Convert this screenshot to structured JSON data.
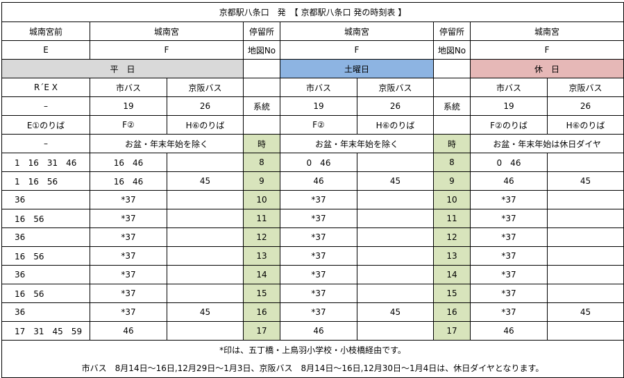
{
  "title": "京都駅八条口　発　【 京都駅八条口 発の時刻表 】",
  "header": {
    "stops": {
      "weekday_e": "城南宮前",
      "weekday_f": "城南宮",
      "col_stop": "停留所",
      "saturday_f": "城南宮",
      "col_stop2": "停留所",
      "holiday_f": "城南宮"
    },
    "map": {
      "e": "E",
      "f": "F",
      "map_no": "地図No",
      "sat_f": "F",
      "map_no2": "地図No",
      "hol_f": "F"
    },
    "days": {
      "weekday": "平　日",
      "saturday": "土曜日",
      "holiday": "休　日"
    },
    "operators": {
      "rex": "R´E X",
      "city1": "市バス",
      "keihan1": "京阪バス",
      "city2": "市バス",
      "keihan2": "京阪バス",
      "city3": "市バス",
      "keihan3": "京阪バス"
    },
    "routes": {
      "rex": "–",
      "w19": "19",
      "w26": "26",
      "label1": "系統",
      "s19": "19",
      "s26": "26",
      "label2": "系統",
      "h19": "19",
      "h26": "26"
    },
    "platforms": {
      "e1": "E①のりば",
      "f2": "F②",
      "h6": "H⑥のりば",
      "sf2": "F②",
      "sh6": "H⑥のりば",
      "hf2": "F②のりば",
      "hh6": "H⑥のりば"
    },
    "notes_row": {
      "rex": "–",
      "weekday": "お盆・年末年始を除く",
      "hour1": "時",
      "saturday": "お盆・年末年始を除く",
      "hour2": "時",
      "holiday": "お盆・年末年始は休日ダイヤ"
    }
  },
  "rows": [
    {
      "rex": "1　16　31　46",
      "w19": "16　46",
      "w26": "",
      "hour": "8",
      "s19": "0　46",
      "s26": "",
      "hour2": "8",
      "h19": "0　46",
      "h26": ""
    },
    {
      "rex": "1　16　56",
      "w19": "16　46",
      "w26": "45",
      "hour": "9",
      "s19": "46",
      "s26": "45",
      "hour2": "9",
      "h19": "46",
      "h26": "45"
    },
    {
      "rex": "36",
      "w19": "*37",
      "w26": "",
      "hour": "10",
      "s19": "*37",
      "s26": "",
      "hour2": "10",
      "h19": "*37",
      "h26": ""
    },
    {
      "rex": "16　56",
      "w19": "*37",
      "w26": "",
      "hour": "11",
      "s19": "*37",
      "s26": "",
      "hour2": "11",
      "h19": "*37",
      "h26": ""
    },
    {
      "rex": "36",
      "w19": "*37",
      "w26": "",
      "hour": "12",
      "s19": "*37",
      "s26": "",
      "hour2": "12",
      "h19": "*37",
      "h26": ""
    },
    {
      "rex": "16　56",
      "w19": "*37",
      "w26": "",
      "hour": "13",
      "s19": "*37",
      "s26": "",
      "hour2": "13",
      "h19": "*37",
      "h26": ""
    },
    {
      "rex": "36",
      "w19": "*37",
      "w26": "",
      "hour": "14",
      "s19": "*37",
      "s26": "",
      "hour2": "14",
      "h19": "*37",
      "h26": ""
    },
    {
      "rex": "16　56",
      "w19": "*37",
      "w26": "",
      "hour": "15",
      "s19": "*37",
      "s26": "",
      "hour2": "15",
      "h19": "*37",
      "h26": ""
    },
    {
      "rex": "36",
      "w19": "*37",
      "w26": "45",
      "hour": "16",
      "s19": "*37",
      "s26": "45",
      "hour2": "16",
      "h19": "*37",
      "h26": "45"
    },
    {
      "rex": "17　31　45　59",
      "w19": "46",
      "w26": "",
      "hour": "17",
      "s19": "46",
      "s26": "",
      "hour2": "17",
      "h19": "46",
      "h26": ""
    }
  ],
  "footer": {
    "note1": "*印は、五丁橋・上鳥羽小学校・小枝橋経由です。",
    "note2": "市バス　8月14日～16日,12月29日～1月3日、京阪バス　8月14日～16日,12月30日～1月4日は、休日ダイヤとなります。"
  },
  "colors": {
    "weekday_header": "#d9d9d9",
    "saturday_header": "#8db4e2",
    "holiday_header": "#e6b8b7",
    "hour_column": "#d8e4bc"
  }
}
